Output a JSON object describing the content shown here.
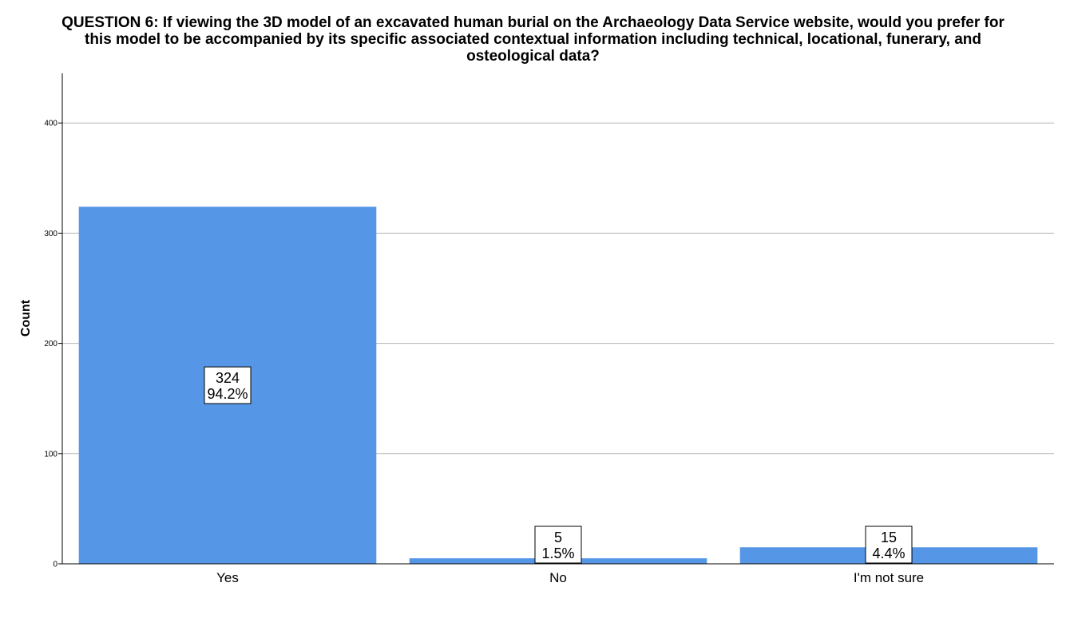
{
  "chart_data": {
    "type": "bar",
    "title_lines": [
      "QUESTION 6: If viewing the 3D model of an excavated human burial on the Archaeology Data Service website, would you prefer for",
      "this model to be accompanied by its specific associated contextual information including technical, locational, funerary, and",
      "osteological data?"
    ],
    "categories": [
      "Yes",
      "No",
      "I'm not sure"
    ],
    "values": [
      324,
      5,
      15
    ],
    "percent_labels": [
      "94.2%",
      "1.5%",
      "4.4%"
    ],
    "xlabel": "",
    "ylabel": "Count",
    "ylim": [
      0,
      445
    ],
    "yticks": [
      0,
      100,
      200,
      300,
      400
    ],
    "grid": true,
    "bar_color": "#5596e6",
    "grid_color": "#b4b4b4"
  }
}
